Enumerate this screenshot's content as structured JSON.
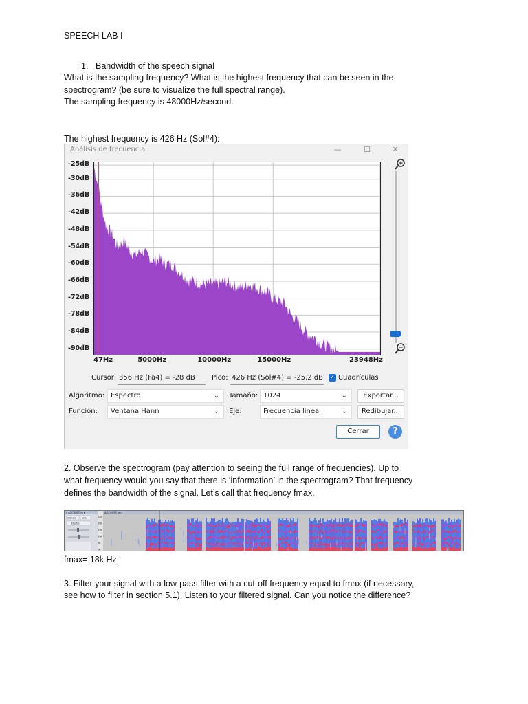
{
  "doc": {
    "title": "SPEECH LAB I",
    "q1": {
      "number": "1.",
      "heading": "Bandwidth of the speech signal",
      "question_line1": "What is the sampling frequency? What is the highest frequency that can be seen in the",
      "question_line2": "spectrogram? (be sure to visualize the full spectral range).",
      "answer": "The sampling frequency is 48000Hz/second.",
      "answer2": "The highest frequency is 426 Hz (Sol#4):"
    },
    "q2": {
      "line1": "2. Observe the spectrogram (pay attention to seeing the full range of frequencies). Up to",
      "line2": "what frequency would you say that there is ‘information’ in the spectrogram? That frequency",
      "line3": "defines the bandwidth of the signal. Let’s call that frequency fmax.",
      "answer": "fmax= 18k Hz"
    },
    "q3": {
      "line1": "3. Filter your signal with a low-pass filter with a cut-off frequency equal to fmax (if necessary,",
      "line2": "see how to filter in section 5.1). Listen to your filtered signal. Can you notice the difference?"
    }
  },
  "dialog": {
    "title": "Análisis de frecuencia",
    "minimize": "—",
    "maximize": "☐",
    "close": "✕",
    "zoom_in_icon": "magnifier-plus",
    "zoom_out_icon": "magnifier-minus",
    "cursor_label": "Cursor:",
    "cursor_value": "356 Hz (Fa4) = -28 dB",
    "peak_label": "Pico:",
    "peak_value": "426 Hz (Sol#4) = -25,2 dB",
    "grid_label": "Cuadrículas",
    "grid_checked": true,
    "algorithm_label": "Algoritmo:",
    "algorithm_value": "Espectro",
    "size_label": "Tamaño:",
    "size_value": "1024",
    "export_button": "Exportar...",
    "function_label": "Función:",
    "function_value": "Ventana Hann",
    "axis_label": "Eje:",
    "axis_value": "Frecuencia lineal",
    "redraw_button": "Redibujar...",
    "close_button": "Cerrar",
    "help_button": "?"
  },
  "chart_data": {
    "type": "area",
    "title": "",
    "xlabel": "",
    "ylabel": "",
    "x_ticks": [
      "47Hz",
      "5000Hz",
      "10000Hz",
      "15000Hz",
      "23948Hz"
    ],
    "y_ticks": [
      "-25dB",
      "-30dB",
      "-36dB",
      "-42dB",
      "-48dB",
      "-54dB",
      "-60dB",
      "-66dB",
      "-72dB",
      "-78dB",
      "-84dB",
      "-90dB"
    ],
    "xlim": [
      47,
      23948
    ],
    "ylim": [
      -92,
      -24
    ],
    "grid": true,
    "fill_color": "#9b45c9",
    "peak_marker_color": "#d04060",
    "series": [
      {
        "x": [
          47,
          150,
          250,
          400,
          600,
          800,
          1000,
          1300,
          1600,
          2000,
          2500,
          3000,
          3500,
          4000,
          4500,
          5000,
          5500,
          6000,
          6500,
          7000,
          7500,
          8000,
          8500,
          9000,
          9500,
          10000,
          10500,
          11000,
          11500,
          12000,
          12500,
          13000,
          13500,
          14000,
          14500,
          15000,
          15500,
          16000,
          16500,
          17000,
          17500,
          18000,
          18500,
          19000,
          19500,
          20000,
          20500,
          21000,
          22000,
          23000,
          23948
        ],
        "y": [
          -26,
          -28,
          -30,
          -33,
          -38,
          -42,
          -46,
          -48,
          -50,
          -54,
          -52,
          -55,
          -57,
          -55,
          -57,
          -59,
          -58,
          -60,
          -60,
          -62,
          -64,
          -66,
          -66,
          -67,
          -67,
          -67,
          -67,
          -66,
          -67,
          -68,
          -68,
          -67,
          -68,
          -69,
          -70,
          -72,
          -73,
          -74,
          -78,
          -80,
          -83,
          -85,
          -86,
          -88,
          -89,
          -90,
          -91,
          -91,
          -91,
          -91,
          -91
        ]
      }
    ]
  },
  "spectrogram": {
    "track_name": "AGC9003_mu",
    "side_labels": [
      "Silencio",
      "Solo",
      "Efectos"
    ],
    "freq_ticks": [
      "24k",
      "20k",
      "15k",
      "10k",
      "5k",
      "0k"
    ]
  }
}
